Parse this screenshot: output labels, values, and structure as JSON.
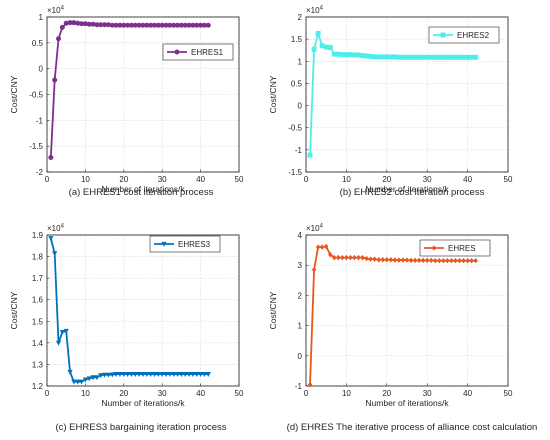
{
  "chart_data": [
    {
      "type": "line",
      "marker": "circle",
      "color": "#7E2F8E",
      "caption": "(a) EHRES1 cost iteration process",
      "title": "",
      "xlabel": "Number of iterations/k",
      "ylabel": "Cost/CNY",
      "y_multiplier": "×10^4",
      "y_multiplier_text": {
        "base": "10",
        "exponent": "4"
      },
      "xlim": [
        0,
        50
      ],
      "ylim": [
        -2,
        1
      ],
      "xticks": [
        0,
        10,
        20,
        30,
        40,
        50
      ],
      "yticks": [
        -2,
        -1.5,
        -1,
        -0.5,
        0,
        0.5,
        1
      ],
      "grid": true,
      "legend_position": "top-right",
      "series": [
        {
          "name": "EHRES1",
          "x": [
            1,
            2,
            3,
            4,
            5,
            6,
            7,
            8,
            9,
            10,
            11,
            12,
            13,
            14,
            15,
            16,
            17,
            18,
            19,
            20,
            21,
            22,
            23,
            24,
            25,
            26,
            27,
            28,
            29,
            30,
            31,
            32,
            33,
            34,
            35,
            36,
            37,
            38,
            39,
            40,
            41,
            42
          ],
          "y": [
            -1.72,
            -0.22,
            0.58,
            0.8,
            0.88,
            0.89,
            0.89,
            0.88,
            0.87,
            0.87,
            0.86,
            0.86,
            0.85,
            0.85,
            0.85,
            0.85,
            0.84,
            0.84,
            0.84,
            0.84,
            0.84,
            0.84,
            0.84,
            0.84,
            0.84,
            0.84,
            0.84,
            0.84,
            0.84,
            0.84,
            0.84,
            0.84,
            0.84,
            0.84,
            0.84,
            0.84,
            0.84,
            0.84,
            0.84,
            0.84,
            0.84,
            0.84
          ]
        }
      ]
    },
    {
      "type": "line",
      "marker": "square",
      "color": "#4DEEEA",
      "caption": "(b) EHRES2 cost iteration process",
      "title": "",
      "xlabel": "Number of iterations/k",
      "ylabel": "Cost/CNY",
      "y_multiplier": "×10^4",
      "y_multiplier_text": {
        "base": "10",
        "exponent": "4"
      },
      "xlim": [
        0,
        50
      ],
      "ylim": [
        -1.5,
        2
      ],
      "xticks": [
        0,
        10,
        20,
        30,
        40,
        50
      ],
      "yticks": [
        -1.5,
        -1,
        -0.5,
        0,
        0.5,
        1,
        1.5,
        2
      ],
      "grid": true,
      "legend_position": "top-right",
      "series": [
        {
          "name": "EHRES2",
          "x": [
            1,
            2,
            3,
            4,
            5,
            6,
            7,
            8,
            9,
            10,
            11,
            12,
            13,
            14,
            15,
            16,
            17,
            18,
            19,
            20,
            21,
            22,
            23,
            24,
            25,
            26,
            27,
            28,
            29,
            30,
            31,
            32,
            33,
            34,
            35,
            36,
            37,
            38,
            39,
            40,
            41,
            42
          ],
          "y": [
            -1.12,
            1.27,
            1.63,
            1.35,
            1.32,
            1.31,
            1.16,
            1.16,
            1.15,
            1.15,
            1.15,
            1.14,
            1.14,
            1.13,
            1.12,
            1.11,
            1.1,
            1.1,
            1.1,
            1.1,
            1.1,
            1.1,
            1.09,
            1.09,
            1.09,
            1.09,
            1.09,
            1.09,
            1.09,
            1.09,
            1.09,
            1.09,
            1.09,
            1.09,
            1.09,
            1.09,
            1.09,
            1.09,
            1.09,
            1.09,
            1.09,
            1.09
          ]
        }
      ]
    },
    {
      "type": "line",
      "marker": "triangle-down",
      "color": "#0072BD",
      "caption": "(c) EHRES3 bargaining iteration process",
      "title": "",
      "xlabel": "Number of iterations/k",
      "ylabel": "Cost/CNY",
      "y_multiplier": "×10^4",
      "y_multiplier_text": {
        "base": "10",
        "exponent": "4"
      },
      "xlim": [
        0,
        50
      ],
      "ylim": [
        1.2,
        1.9
      ],
      "xticks": [
        0,
        10,
        20,
        30,
        40,
        50
      ],
      "yticks": [
        1.2,
        1.3,
        1.4,
        1.5,
        1.6,
        1.7,
        1.8,
        1.9
      ],
      "grid": true,
      "legend_position": "top-right",
      "series": [
        {
          "name": "EHRES3",
          "x": [
            1,
            2,
            3,
            4,
            5,
            6,
            7,
            8,
            9,
            10,
            11,
            12,
            13,
            14,
            15,
            16,
            17,
            18,
            19,
            20,
            21,
            22,
            23,
            24,
            25,
            26,
            27,
            28,
            29,
            30,
            31,
            32,
            33,
            34,
            35,
            36,
            37,
            38,
            39,
            40,
            41,
            42
          ],
          "y": [
            1.885,
            1.815,
            1.4,
            1.45,
            1.455,
            1.265,
            1.22,
            1.22,
            1.22,
            1.23,
            1.235,
            1.24,
            1.24,
            1.25,
            1.252,
            1.252,
            1.253,
            1.255,
            1.255,
            1.255,
            1.255,
            1.255,
            1.255,
            1.255,
            1.255,
            1.255,
            1.255,
            1.255,
            1.255,
            1.255,
            1.255,
            1.255,
            1.255,
            1.255,
            1.255,
            1.255,
            1.255,
            1.255,
            1.255,
            1.255,
            1.255,
            1.255
          ]
        }
      ]
    },
    {
      "type": "line",
      "marker": "diamond",
      "color": "#E9561D",
      "caption": "(d) EHRES The iterative process of alliance cost calculation",
      "title": "",
      "xlabel": "Number of iterations/k",
      "ylabel": "Cost/CNY",
      "y_multiplier": "×10^4",
      "y_multiplier_text": {
        "base": "10",
        "exponent": "4"
      },
      "xlim": [
        0,
        50
      ],
      "ylim": [
        -1,
        4
      ],
      "xticks": [
        0,
        10,
        20,
        30,
        40,
        50
      ],
      "yticks": [
        -1,
        0,
        1,
        2,
        3,
        4
      ],
      "grid": true,
      "legend_position": "top-right",
      "series": [
        {
          "name": "EHRES",
          "x": [
            1,
            2,
            3,
            4,
            5,
            6,
            7,
            8,
            9,
            10,
            11,
            12,
            13,
            14,
            15,
            16,
            17,
            18,
            19,
            20,
            21,
            22,
            23,
            24,
            25,
            26,
            27,
            28,
            29,
            30,
            31,
            32,
            33,
            34,
            35,
            36,
            37,
            38,
            39,
            40,
            41,
            42
          ],
          "y": [
            -0.95,
            2.85,
            3.6,
            3.6,
            3.62,
            3.35,
            3.25,
            3.25,
            3.25,
            3.25,
            3.25,
            3.25,
            3.25,
            3.25,
            3.22,
            3.2,
            3.2,
            3.18,
            3.18,
            3.18,
            3.18,
            3.17,
            3.17,
            3.17,
            3.17,
            3.16,
            3.16,
            3.16,
            3.16,
            3.16,
            3.16,
            3.15,
            3.15,
            3.15,
            3.15,
            3.15,
            3.15,
            3.15,
            3.15,
            3.15,
            3.15,
            3.15
          ]
        }
      ]
    }
  ]
}
